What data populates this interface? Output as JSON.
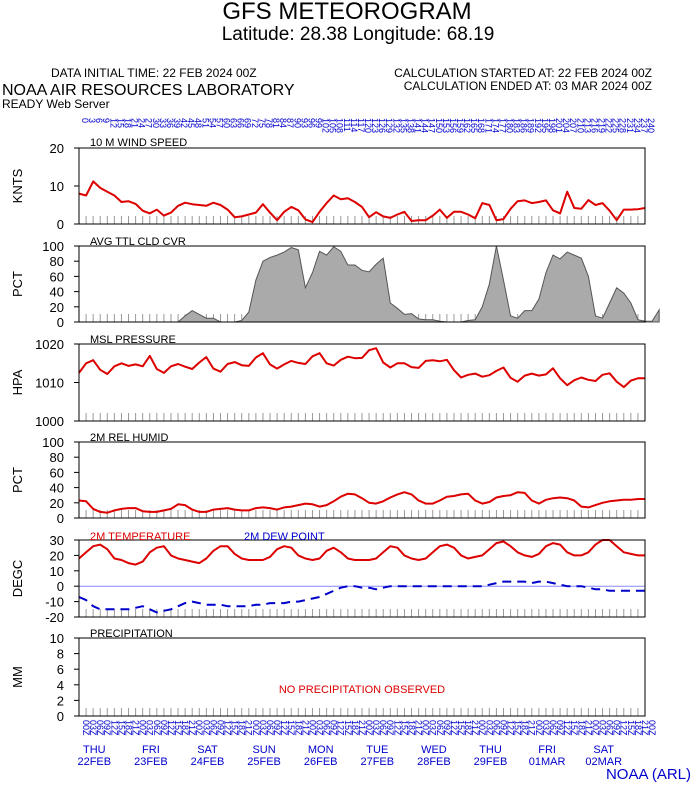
{
  "header": {
    "title": "GFS METEOROGRAM",
    "location": "Latitude: 28.38 Longitude:  68.19",
    "init_time": "DATA INITIAL TIME: 22 FEB 2024 00Z",
    "calc_started": "CALCULATION STARTED AT: 22 FEB 2024 00Z",
    "calc_ended": "CALCULATION ENDED AT: 03 MAR 2024 00Z",
    "lab": "NOAA AIR RESOURCES LABORATORY",
    "server": "READY Web Server",
    "credit": "NOAA (ARL)"
  },
  "colors": {
    "red": "#dd0000",
    "blue": "#0000cc",
    "cloud_fill": "#aaaaaa",
    "zero_line": "#8888ff",
    "tick": "#999999"
  },
  "top_hour_labels": [
    "0",
    "3",
    "6",
    "9",
    "12",
    "15",
    "18",
    "21",
    "24",
    "27",
    "30",
    "33",
    "36",
    "39",
    "42",
    "45",
    "48",
    "51",
    "54",
    "57",
    "60",
    "63",
    "66",
    "69",
    "72",
    "75",
    "78",
    "81",
    "84",
    "87",
    "90",
    "93",
    "96",
    "99",
    "102",
    "105",
    "108",
    "111",
    "114",
    "117",
    "120",
    "123",
    "126",
    "129",
    "132",
    "135",
    "138",
    "141",
    "144",
    "147",
    "150",
    "153",
    "156",
    "159",
    "162",
    "165",
    "168",
    "171",
    "174",
    "177",
    "180",
    "183",
    "186",
    "189",
    "192",
    "195",
    "198",
    "201",
    "204",
    "207",
    "210",
    "213",
    "216",
    "219",
    "222",
    "225",
    "228",
    "231",
    "234",
    "237",
    "240"
  ],
  "bottom_hour_labels": [
    "00Z",
    "03Z",
    "06Z",
    "09Z",
    "12Z",
    "15Z",
    "18Z",
    "21Z",
    "00Z",
    "03Z",
    "06Z",
    "09Z",
    "12Z",
    "15Z",
    "18Z",
    "21Z",
    "00Z",
    "03Z",
    "06Z",
    "09Z",
    "12Z",
    "15Z",
    "18Z",
    "21Z",
    "00Z",
    "03Z",
    "06Z",
    "09Z",
    "12Z",
    "15Z",
    "18Z",
    "21Z",
    "00Z",
    "03Z",
    "06Z",
    "09Z",
    "12Z",
    "15Z",
    "18Z",
    "21Z",
    "00Z",
    "03Z",
    "06Z",
    "09Z",
    "12Z",
    "15Z",
    "18Z",
    "21Z",
    "00Z",
    "03Z",
    "06Z",
    "09Z",
    "12Z",
    "15Z",
    "18Z",
    "21Z",
    "00Z",
    "03Z",
    "06Z",
    "09Z",
    "12Z",
    "15Z",
    "18Z",
    "21Z",
    "00Z",
    "03Z",
    "06Z",
    "09Z",
    "12Z",
    "15Z",
    "18Z",
    "21Z",
    "00Z",
    "03Z",
    "06Z",
    "09Z",
    "12Z",
    "15Z",
    "18Z",
    "21Z",
    "00Z"
  ],
  "days": [
    {
      "dow": "THU",
      "date": "22FEB"
    },
    {
      "dow": "FRI",
      "date": "23FEB"
    },
    {
      "dow": "SAT",
      "date": "24FEB"
    },
    {
      "dow": "SUN",
      "date": "25FEB"
    },
    {
      "dow": "MON",
      "date": "26FEB"
    },
    {
      "dow": "TUE",
      "date": "27FEB"
    },
    {
      "dow": "WED",
      "date": "28FEB"
    },
    {
      "dow": "THU",
      "date": "29FEB"
    },
    {
      "dow": "FRI",
      "date": "01MAR"
    },
    {
      "dow": "SAT",
      "date": "02MAR"
    }
  ],
  "chart_data": [
    {
      "type": "line",
      "title": "10 M  WIND SPEED",
      "ylabel": "KNTS",
      "ylim": [
        0,
        20
      ],
      "yticks": [
        "20",
        "10",
        "0"
      ],
      "x_hours_step": 3,
      "series": [
        {
          "color": "#dd0000",
          "values": [
            8,
            7.5,
            11.2,
            9.5,
            8.5,
            7.5,
            5.8,
            6,
            5.3,
            3.5,
            2.8,
            3.8,
            2.2,
            3,
            4.8,
            5.6,
            5.2,
            5,
            4.8,
            5.6,
            5,
            3.8,
            1.8,
            2,
            2.5,
            3,
            5.2,
            3,
            1,
            3.2,
            4.5,
            3.6,
            1.2,
            0.5,
            3.2,
            5.5,
            7.5,
            6.5,
            6.8,
            5.8,
            4.5,
            1.8,
            3.1,
            2,
            1.6,
            2.5,
            3.2,
            0.8,
            1,
            1,
            2.2,
            3.8,
            1.6,
            3.2,
            3.2,
            2.5,
            1.5,
            5.5,
            5,
            1,
            1.3,
            4,
            6,
            6.2,
            5.5,
            5.8,
            6.2,
            3.6,
            2.8,
            8.5,
            4.2,
            4,
            6.3,
            5,
            5.5,
            3.5,
            1,
            3.8,
            3.8,
            3.9,
            4.2
          ]
        }
      ]
    },
    {
      "type": "area",
      "title": "AVG TTL CLD CVR",
      "ylabel": "PCT",
      "ylim": [
        0,
        100
      ],
      "yticks": [
        "100",
        "80",
        "60",
        "40",
        "20",
        "0"
      ],
      "x_hours_step": 3,
      "series": [
        {
          "color": "#aaaaaa",
          "values": [
            0,
            0,
            0,
            0,
            0,
            0,
            0,
            0,
            0,
            0,
            0,
            0,
            0,
            0,
            0,
            8,
            15,
            10,
            5,
            5,
            0,
            0,
            0,
            2,
            13,
            55,
            80,
            85,
            88,
            92,
            98,
            95,
            45,
            65,
            93,
            88,
            99,
            93,
            75,
            75,
            68,
            66,
            76,
            84,
            25,
            18,
            10,
            11,
            4,
            3,
            3,
            1,
            0,
            0,
            0,
            2,
            3,
            20,
            50,
            100,
            55,
            8,
            5,
            15,
            15,
            30,
            65,
            88,
            83,
            92,
            88,
            84,
            60,
            8,
            5,
            25,
            45,
            38,
            25,
            3,
            1,
            1,
            16
          ]
        }
      ]
    },
    {
      "type": "line",
      "title": "MSL PRESSURE",
      "ylabel": "HPA",
      "ylim": [
        1000,
        1020
      ],
      "yticks": [
        "1020",
        "1010",
        "1000"
      ],
      "x_hours_step": 3,
      "series": [
        {
          "color": "#dd0000",
          "values": [
            1012.5,
            1015,
            1015.8,
            1013.3,
            1012.2,
            1014.2,
            1015,
            1014.3,
            1014.7,
            1014.2,
            1016.9,
            1013.5,
            1012.5,
            1014.2,
            1014.8,
            1014.1,
            1013.5,
            1015.2,
            1016.6,
            1013.6,
            1012.8,
            1014.8,
            1015.3,
            1014.5,
            1014.3,
            1016.5,
            1017.6,
            1014.7,
            1013.6,
            1014.7,
            1015.6,
            1015.1,
            1014.8,
            1016.8,
            1017.6,
            1015,
            1014.4,
            1015.9,
            1016.7,
            1016.3,
            1016.4,
            1018.4,
            1018.9,
            1015.2,
            1013.9,
            1015,
            1015,
            1014,
            1013.8,
            1015.6,
            1015.8,
            1015.5,
            1015.9,
            1013.2,
            1011.3,
            1012,
            1012.3,
            1011.5,
            1011.9,
            1013,
            1013.9,
            1011.2,
            1010.2,
            1011.8,
            1012.3,
            1011.8,
            1012.1,
            1013.7,
            1011.1,
            1009.3,
            1010.6,
            1011.3,
            1010.7,
            1010.4,
            1012,
            1012.4,
            1010.2,
            1008.8,
            1010.5,
            1011.1,
            1011.1
          ]
        }
      ]
    },
    {
      "type": "line",
      "title": "2M REL HUMID",
      "ylabel": "PCT",
      "ylim": [
        0,
        100
      ],
      "yticks": [
        "100",
        "80",
        "60",
        "40",
        "20",
        "0"
      ],
      "x_hours_step": 3,
      "series": [
        {
          "color": "#dd0000",
          "values": [
            23,
            22,
            12,
            8,
            7,
            10,
            12,
            13,
            13,
            9,
            8,
            8,
            10,
            12,
            18,
            17,
            11,
            8,
            8,
            11,
            12,
            13,
            11,
            10,
            10,
            13,
            14,
            13,
            11,
            14,
            15,
            17,
            19,
            18,
            15,
            17,
            22,
            28,
            32,
            31,
            26,
            20,
            19,
            22,
            27,
            31,
            34,
            31,
            23,
            19,
            19,
            23,
            28,
            29,
            31,
            32,
            23,
            19,
            21,
            27,
            29,
            30,
            34,
            33,
            23,
            19,
            24,
            26,
            27,
            26,
            23,
            15,
            14,
            17,
            20,
            22,
            23,
            24,
            24,
            25,
            25
          ]
        }
      ]
    },
    {
      "type": "line",
      "legend": [
        "2M TEMPERATURE",
        "2M   DEW POINT"
      ],
      "ylabel": "DEGC",
      "ylim": [
        -20,
        30
      ],
      "yticks": [
        "30",
        "20",
        "10",
        "0",
        "-10",
        "-20"
      ],
      "x_hours_step": 3,
      "series": [
        {
          "name": "2M TEMPERATURE",
          "color": "#dd0000",
          "dash": false,
          "values": [
            18,
            22,
            26,
            27,
            24,
            18,
            17,
            15,
            14,
            16,
            22,
            25,
            26,
            20,
            18,
            17,
            16,
            15,
            18,
            23,
            26,
            26,
            21,
            18,
            17,
            17,
            17,
            19,
            24,
            26,
            25,
            20,
            18,
            17,
            18,
            23,
            25,
            22,
            18,
            17,
            17,
            17,
            18,
            22,
            26,
            25,
            20,
            18,
            17,
            18,
            22,
            26,
            27,
            25,
            20,
            18,
            19,
            20,
            24,
            28,
            29,
            26,
            22,
            20,
            19,
            21,
            26,
            28,
            27,
            22,
            20,
            20,
            22,
            27,
            30,
            30,
            26,
            22,
            21,
            20,
            20
          ]
        },
        {
          "name": "2M   DEW POINT",
          "color": "#0000cc",
          "dash": true,
          "values": [
            -7,
            -9,
            -13,
            -15,
            -15,
            -15,
            -15,
            -15,
            -14,
            -13,
            -15,
            -17,
            -16,
            -15,
            -13,
            -11,
            -10,
            -11,
            -12,
            -12,
            -12,
            -13,
            -13,
            -13,
            -13,
            -12,
            -12,
            -11,
            -11,
            -11,
            -10,
            -10,
            -9,
            -8,
            -7,
            -5,
            -3,
            -1,
            0,
            0,
            -1,
            -1,
            -2,
            -1,
            0,
            0,
            0,
            0,
            0,
            0,
            0,
            0,
            0,
            0,
            0,
            0,
            0,
            0,
            1,
            2,
            3,
            3,
            3,
            3,
            2,
            3,
            3,
            2,
            1,
            0,
            0,
            0,
            -1,
            -2,
            -2,
            -3,
            -3,
            -3,
            -3,
            -3,
            -3
          ]
        }
      ]
    },
    {
      "type": "bar",
      "title": "PRECIPITATION",
      "ylabel": "MM",
      "ylim": [
        0,
        10
      ],
      "yticks": [
        "10",
        "8",
        "6",
        "4",
        "2",
        "0"
      ],
      "note": "NO PRECIPITATION OBSERVED",
      "series": [
        {
          "values": []
        }
      ]
    }
  ]
}
